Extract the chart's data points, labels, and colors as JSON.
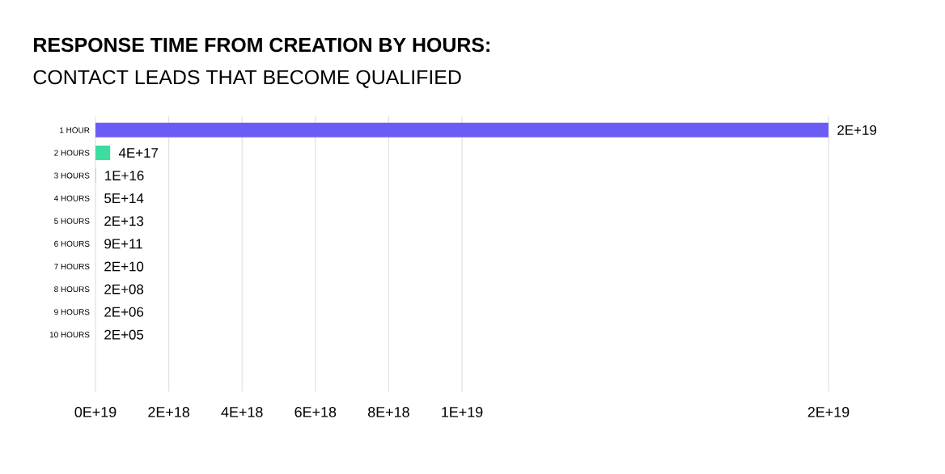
{
  "chart_data": {
    "type": "bar",
    "orientation": "horizontal",
    "title": "RESPONSE TIME FROM CREATION BY HOURS:",
    "subtitle": "CONTACT LEADS THAT BECOME QUALIFIED",
    "categories": [
      "1 HOUR",
      "2 HOURS",
      "3 HOURS",
      "4  HOURS",
      "5 HOURS",
      "6 HOURS",
      "7 HOURS",
      "8 HOURS",
      "9 HOURS",
      "10 HOURS"
    ],
    "values": [
      2e+19,
      4e+17,
      1e+16,
      500000000000000.0,
      20000000000000.0,
      900000000000.0,
      20000000000.0,
      200000000.0,
      2000000.0,
      200000.0
    ],
    "value_labels": [
      "2E+19",
      "4E+17",
      "1E+16",
      "5E+14",
      "2E+13",
      "9E+11",
      "2E+10",
      "2E+08",
      "2E+06",
      "2E+05"
    ],
    "colors": [
      "#6c5cf6",
      "#3ddc9f",
      "#3ddc9f",
      "#3ddc9f",
      "#3ddc9f",
      "#3ddc9f",
      "#3ddc9f",
      "#3ddc9f",
      "#3ddc9f",
      "#3ddc9f"
    ],
    "xlim": [
      0,
      2e+19
    ],
    "xticks": [
      {
        "value": 0,
        "label": "0E+19"
      },
      {
        "value": 2e+18,
        "label": "2E+18"
      },
      {
        "value": 4e+18,
        "label": "4E+18"
      },
      {
        "value": 6e+18,
        "label": "6E+18"
      },
      {
        "value": 8e+18,
        "label": "8E+18"
      },
      {
        "value": 1e+19,
        "label": "1E+19"
      },
      {
        "value": 2e+19,
        "label": "2E+19"
      }
    ],
    "grid": "x"
  }
}
